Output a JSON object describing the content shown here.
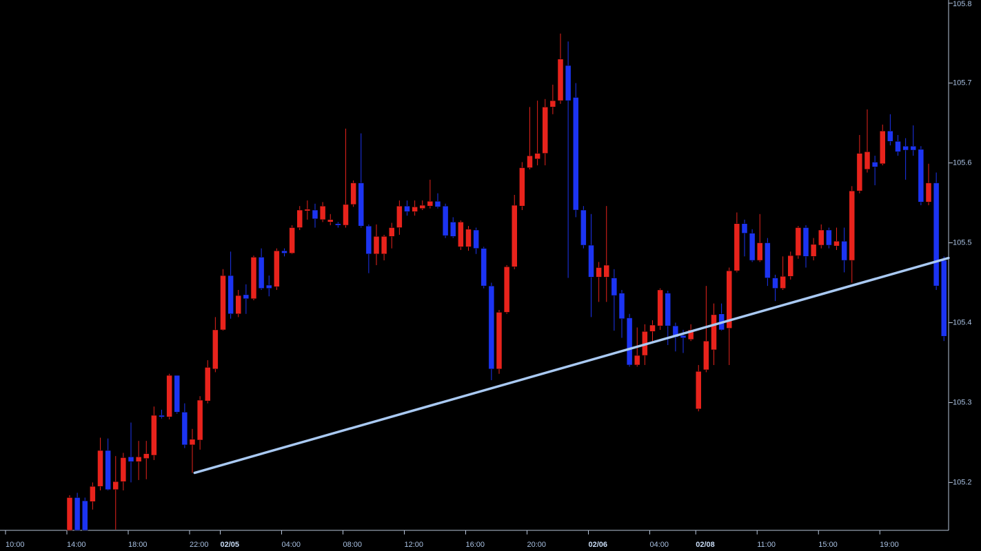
{
  "chart_data": {
    "type": "candlestick",
    "categories": [
      "10:00",
      null,
      null,
      null,
      null,
      null,
      null,
      null,
      "14:00",
      null,
      null,
      null,
      null,
      null,
      null,
      null,
      "18:00",
      null,
      null,
      null,
      null,
      null,
      null,
      null,
      "22:00",
      null,
      null,
      null,
      "02/05",
      null,
      null,
      null,
      null,
      null,
      null,
      null,
      "04:00",
      null,
      null,
      null,
      null,
      null,
      null,
      null,
      "08:00",
      null,
      null,
      null,
      null,
      null,
      null,
      null,
      "12:00",
      null,
      null,
      null,
      null,
      null,
      null,
      null,
      "16:00",
      null,
      null,
      null,
      null,
      null,
      null,
      null,
      "20:00",
      null,
      null,
      null,
      null,
      null,
      null,
      null,
      "02/06",
      null,
      null,
      null,
      null,
      null,
      null,
      null,
      "04:00",
      null,
      null,
      null,
      null,
      null,
      "02/08",
      null,
      null,
      null,
      null,
      null,
      null,
      null,
      "11:00",
      null,
      null,
      null,
      null,
      null,
      null,
      null,
      "15:00",
      null,
      null,
      null,
      null,
      null,
      null,
      null,
      "19:00",
      null,
      null,
      null,
      null,
      null,
      null,
      null,
      null
    ],
    "open": [
      null,
      null,
      null,
      null,
      null,
      null,
      null,
      null,
      105.14,
      105.181,
      105.177,
      105.176,
      105.195,
      105.24,
      105.191,
      105.201,
      105.232,
      105.226,
      105.23,
      105.234,
      105.284,
      105.282,
      105.334,
      105.288,
      105.247,
      105.253,
      105.302,
      105.342,
      105.391,
      105.459,
      105.411,
      105.435,
      105.43,
      105.482,
      105.447,
      105.445,
      105.49,
      105.487,
      105.519,
      105.54,
      105.541,
      105.529,
      105.526,
      105.524,
      105.522,
      105.548,
      105.575,
      105.521,
      105.486,
      105.486,
      105.508,
      105.519,
      105.546,
      105.539,
      105.543,
      105.546,
      105.552,
      105.546,
      105.526,
      105.495,
      105.495,
      105.516,
      105.493,
      105.446,
      105.342,
      105.413,
      105.47,
      105.546,
      105.594,
      105.605,
      105.612,
      105.67,
      105.678,
      105.722,
      105.682,
      105.541,
      105.497,
      105.457,
      105.457,
      105.456,
      105.437,
      105.406,
      105.347,
      105.359,
      105.389,
      105.396,
      105.437,
      105.396,
      105.384,
      105.379,
      105.292,
      105.341,
      105.366,
      105.411,
      105.393,
      105.465,
      105.524,
      105.512,
      105.478,
      105.5,
      105.456,
      105.443,
      105.458,
      105.484,
      105.519,
      105.483,
      105.497,
      105.516,
      105.496,
      105.502,
      105.478,
      105.565,
      105.592,
      105.601,
      105.599,
      105.64,
      105.627,
      105.621,
      105.621,
      105.617,
      105.551,
      105.575,
      105.478
    ],
    "high": [
      null,
      null,
      null,
      null,
      null,
      null,
      null,
      null,
      105.184,
      105.187,
      105.181,
      105.2,
      105.256,
      105.255,
      105.233,
      105.237,
      105.275,
      105.252,
      105.252,
      105.295,
      105.291,
      105.336,
      105.334,
      105.299,
      105.267,
      105.308,
      105.353,
      105.407,
      105.467,
      105.489,
      105.441,
      105.448,
      105.484,
      105.493,
      105.459,
      105.493,
      105.493,
      105.522,
      105.546,
      105.553,
      105.549,
      105.551,
      105.536,
      105.526,
      105.643,
      105.578,
      105.637,
      105.523,
      105.523,
      105.51,
      105.525,
      105.553,
      105.553,
      105.553,
      105.553,
      105.579,
      105.562,
      105.549,
      105.532,
      105.528,
      105.521,
      105.519,
      105.495,
      105.45,
      105.416,
      105.472,
      105.56,
      105.601,
      105.67,
      105.678,
      105.68,
      105.698,
      105.762,
      105.752,
      105.7,
      105.546,
      105.536,
      105.476,
      105.546,
      105.467,
      105.441,
      105.411,
      105.394,
      105.398,
      105.403,
      105.443,
      105.44,
      105.4,
      105.391,
      105.398,
      105.347,
      105.446,
      105.424,
      105.424,
      105.469,
      105.538,
      105.529,
      105.517,
      105.536,
      105.506,
      105.46,
      105.483,
      105.489,
      105.521,
      105.522,
      105.506,
      105.523,
      105.519,
      105.519,
      105.519,
      105.571,
      105.635,
      105.667,
      105.609,
      105.648,
      105.661,
      105.635,
      105.631,
      105.647,
      105.621,
      105.599,
      105.588,
      105.483
    ],
    "low": [
      null,
      null,
      null,
      null,
      null,
      null,
      null,
      null,
      105.14,
      105.14,
      105.14,
      105.166,
      105.19,
      105.19,
      105.141,
      105.19,
      105.2,
      105.203,
      105.204,
      105.228,
      105.28,
      105.279,
      105.286,
      105.243,
      105.212,
      105.241,
      105.299,
      105.338,
      105.39,
      105.405,
      105.407,
      105.411,
      105.428,
      105.441,
      105.433,
      105.441,
      105.483,
      105.486,
      105.516,
      105.529,
      105.519,
      105.526,
      105.522,
      105.519,
      105.519,
      105.545,
      105.519,
      105.462,
      105.472,
      105.478,
      105.493,
      105.51,
      105.534,
      105.534,
      105.541,
      105.543,
      105.543,
      105.506,
      105.506,
      105.491,
      105.49,
      105.486,
      105.443,
      105.328,
      105.336,
      105.411,
      105.467,
      105.541,
      105.592,
      105.597,
      105.597,
      105.661,
      105.674,
      105.456,
      105.532,
      105.493,
      105.407,
      105.426,
      105.426,
      105.39,
      105.381,
      105.345,
      105.345,
      105.347,
      105.377,
      105.391,
      105.372,
      105.364,
      105.362,
      105.377,
      105.289,
      105.338,
      105.347,
      105.39,
      105.347,
      105.463,
      105.483,
      105.476,
      105.476,
      105.446,
      105.427,
      105.441,
      105.454,
      105.48,
      105.469,
      105.478,
      105.493,
      105.493,
      105.491,
      105.463,
      105.45,
      105.562,
      105.588,
      105.572,
      105.597,
      105.622,
      105.609,
      105.579,
      105.609,
      105.547,
      105.547,
      105.441,
      105.377
    ],
    "close": [
      null,
      null,
      null,
      null,
      null,
      null,
      null,
      null,
      105.181,
      105.14,
      105.14,
      105.195,
      105.24,
      105.191,
      105.201,
      105.231,
      105.226,
      105.232,
      105.236,
      105.284,
      105.282,
      105.334,
      105.288,
      105.247,
      105.254,
      105.303,
      105.344,
      105.391,
      105.459,
      105.411,
      105.434,
      105.43,
      105.482,
      105.443,
      105.443,
      105.49,
      105.487,
      105.519,
      105.541,
      105.542,
      105.53,
      105.546,
      105.529,
      105.522,
      105.548,
      105.575,
      105.521,
      105.486,
      105.508,
      105.508,
      105.519,
      105.546,
      105.539,
      105.545,
      105.547,
      105.552,
      105.545,
      105.509,
      105.508,
      105.526,
      105.517,
      105.493,
      105.446,
      105.342,
      105.413,
      105.47,
      105.547,
      105.594,
      105.609,
      105.612,
      105.67,
      105.678,
      105.73,
      105.678,
      105.541,
      105.497,
      105.457,
      105.469,
      105.472,
      105.434,
      105.405,
      105.347,
      105.359,
      105.389,
      105.397,
      105.441,
      105.396,
      105.382,
      105.381,
      105.391,
      105.339,
      105.377,
      105.41,
      105.391,
      105.465,
      105.524,
      105.512,
      105.478,
      105.5,
      105.456,
      105.443,
      105.458,
      105.484,
      105.519,
      105.483,
      105.498,
      105.516,
      105.497,
      105.502,
      105.478,
      105.565,
      105.612,
      105.614,
      105.595,
      105.64,
      105.627,
      105.614,
      105.616,
      105.616,
      105.551,
      105.575,
      105.446,
      105.383
    ],
    "up_color": "#e8231c",
    "down_color": "#1c34f2",
    "ylim": [
      105.14,
      105.804
    ],
    "yticks": [
      105.2,
      105.3,
      105.4,
      105.5,
      105.6,
      105.7,
      105.8
    ],
    "trendline": {
      "x": [
        24.3,
        122.6
      ],
      "y": [
        105.212,
        105.481
      ],
      "color": "#a9c9f2"
    }
  }
}
